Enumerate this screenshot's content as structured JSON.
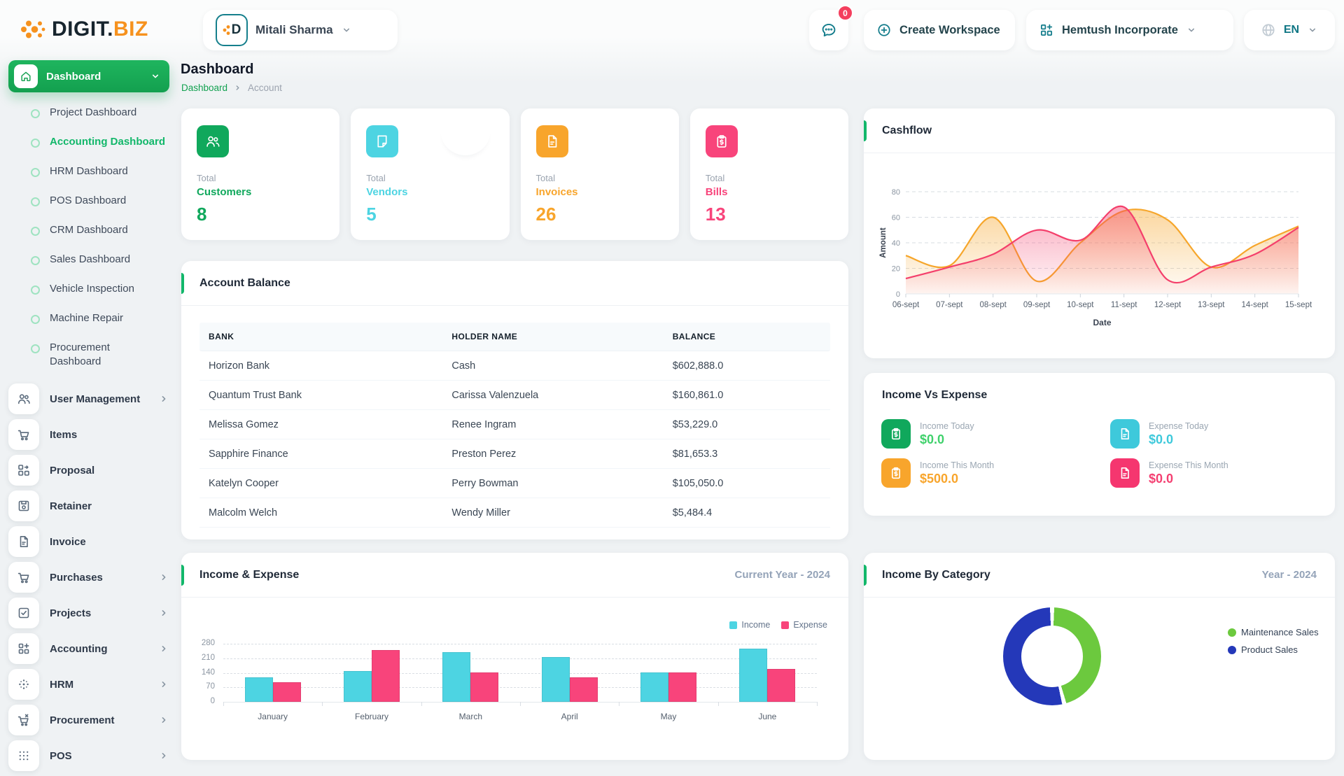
{
  "header": {
    "logo": {
      "part1": "DIGIT.",
      "part2": "BIZ"
    },
    "user": {
      "name": "Mitali Sharma",
      "avatar_letter": "D"
    },
    "chat_badge": "0",
    "create_workspace_label": "Create Workspace",
    "workspace_name": "Hemtush Incorporate",
    "language": "EN"
  },
  "page": {
    "title": "Dashboard",
    "breadcrumb": [
      "Dashboard",
      "Account"
    ]
  },
  "sidebar": {
    "dashboard_label": "Dashboard",
    "sub_items": [
      {
        "label": "Project Dashboard",
        "active": false
      },
      {
        "label": "Accounting Dashboard",
        "active": true
      },
      {
        "label": "HRM Dashboard",
        "active": false
      },
      {
        "label": "POS Dashboard",
        "active": false
      },
      {
        "label": "CRM Dashboard",
        "active": false
      },
      {
        "label": "Sales Dashboard",
        "active": false
      },
      {
        "label": "Vehicle Inspection",
        "active": false
      },
      {
        "label": "Machine Repair",
        "active": false
      },
      {
        "label": "Procurement Dashboard",
        "active": false
      }
    ],
    "menu_items": [
      {
        "label": "User Management",
        "chevron": true
      },
      {
        "label": "Items",
        "chevron": false
      },
      {
        "label": "Proposal",
        "chevron": false
      },
      {
        "label": "Retainer",
        "chevron": false
      },
      {
        "label": "Invoice",
        "chevron": false
      },
      {
        "label": "Purchases",
        "chevron": true
      },
      {
        "label": "Projects",
        "chevron": true
      },
      {
        "label": "Accounting",
        "chevron": true
      },
      {
        "label": "HRM",
        "chevron": true
      },
      {
        "label": "Procurement",
        "chevron": true
      },
      {
        "label": "POS",
        "chevron": true
      }
    ]
  },
  "stat_cards": [
    {
      "total_label": "Total",
      "label": "Customers",
      "value": "8",
      "color": "#10A85C"
    },
    {
      "total_label": "Total",
      "label": "Vendors",
      "value": "5",
      "color": "#4DD4E2"
    },
    {
      "total_label": "Total",
      "label": "Invoices",
      "value": "26",
      "color": "#F8A52C"
    },
    {
      "total_label": "Total",
      "label": "Bills",
      "value": "13",
      "color": "#F8447B"
    }
  ],
  "account_balance": {
    "title": "Account Balance",
    "columns": [
      "BANK",
      "HOLDER NAME",
      "BALANCE"
    ],
    "rows": [
      {
        "bank": "Horizon Bank",
        "holder": "Cash",
        "balance": "$602,888.0"
      },
      {
        "bank": "Quantum Trust Bank",
        "holder": "Carissa Valenzuela",
        "balance": "$160,861.0"
      },
      {
        "bank": "Melissa Gomez",
        "holder": "Renee Ingram",
        "balance": "$53,229.0"
      },
      {
        "bank": "Sapphire Finance",
        "holder": "Preston Perez",
        "balance": "$81,653.3"
      },
      {
        "bank": "Katelyn Cooper",
        "holder": "Perry Bowman",
        "balance": "$105,050.0"
      },
      {
        "bank": "Malcolm Welch",
        "holder": "Wendy Miller",
        "balance": "$5,484.4"
      }
    ]
  },
  "income_vs_expense": {
    "title": "Income Vs Expense",
    "items": [
      {
        "label": "Income Today",
        "value": "$0.0",
        "value_color": "#3FD16B",
        "chip_color": "#10A85C",
        "icon": "clipboard-dollar-icon"
      },
      {
        "label": "Expense Today",
        "value": "$0.0",
        "value_color": "#3EC9DB",
        "chip_color": "#3EC9DB",
        "icon": "document-icon"
      },
      {
        "label": "Income This Month",
        "value": "$500.0",
        "value_color": "#F8A52C",
        "chip_color": "#F8A52C",
        "icon": "clipboard-dollar-icon"
      },
      {
        "label": "Expense This Month",
        "value": "$0.0",
        "value_color": "#F43F71",
        "chip_color": "#F5366F",
        "icon": "document-icon"
      }
    ]
  },
  "chart_data": [
    {
      "type": "area",
      "title": "Cashflow",
      "xlabel": "Date",
      "ylabel": "Amount",
      "x": [
        "06-sept",
        "07-sept",
        "08-sept",
        "09-sept",
        "10-sept",
        "11-sept",
        "12-sept",
        "13-sept",
        "14-sept",
        "15-sept"
      ],
      "yticks": [
        0,
        20,
        40,
        60,
        80
      ],
      "ylim": [
        0,
        85
      ],
      "grid": "dashed-horizontal",
      "legend": "none",
      "series": [
        {
          "name": "series-orange",
          "color": "#F6A62B",
          "values": [
            30,
            22,
            60,
            10,
            40,
            65,
            58,
            21,
            38,
            53
          ]
        },
        {
          "name": "series-pink",
          "color": "#F43F6B",
          "values": [
            12,
            21,
            31,
            50,
            42,
            68,
            11,
            21,
            31,
            52
          ]
        }
      ]
    },
    {
      "type": "bar",
      "title": "Income & Expense",
      "period_label": "Current Year - 2024",
      "categories": [
        "January",
        "February",
        "March",
        "April",
        "May",
        "June"
      ],
      "yticks": [
        0,
        70,
        140,
        210,
        280
      ],
      "ylim": [
        0,
        280
      ],
      "legend_position": "top-right",
      "series": [
        {
          "name": "Income",
          "color": "#4DD4E2",
          "values": [
            118,
            149,
            239,
            217,
            141,
            257
          ]
        },
        {
          "name": "Expense",
          "color": "#F8447B",
          "values": [
            96,
            248,
            141,
            118,
            141,
            159
          ]
        }
      ]
    },
    {
      "type": "pie",
      "donut": true,
      "title": "Income By Category",
      "period_label": "Year - 2024",
      "labels": [
        "Maintenance Sales",
        "Product Sales"
      ],
      "values": [
        46,
        54
      ],
      "colors": [
        "#6CC93E",
        "#2438B9"
      ],
      "legend_position": "right"
    }
  ]
}
